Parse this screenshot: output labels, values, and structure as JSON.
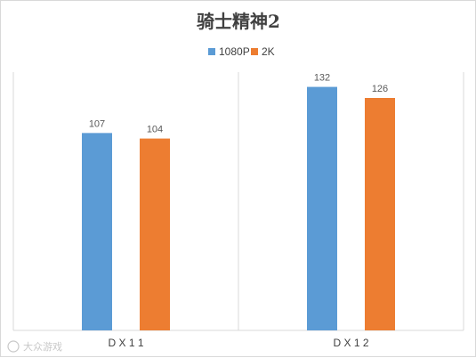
{
  "chart_data": {
    "type": "bar",
    "title": "骑士精神2",
    "categories": [
      "D X 1 1",
      "D X 1 2"
    ],
    "series": [
      {
        "name": "1080P",
        "values": [
          107,
          132
        ],
        "color": "#5b9bd5"
      },
      {
        "name": "2K",
        "values": [
          104,
          126
        ],
        "color": "#ed7d31"
      }
    ],
    "ylim": [
      0,
      140
    ],
    "grid": false,
    "legend_position": "top",
    "category_separators": true
  },
  "watermark": "大众游戏"
}
